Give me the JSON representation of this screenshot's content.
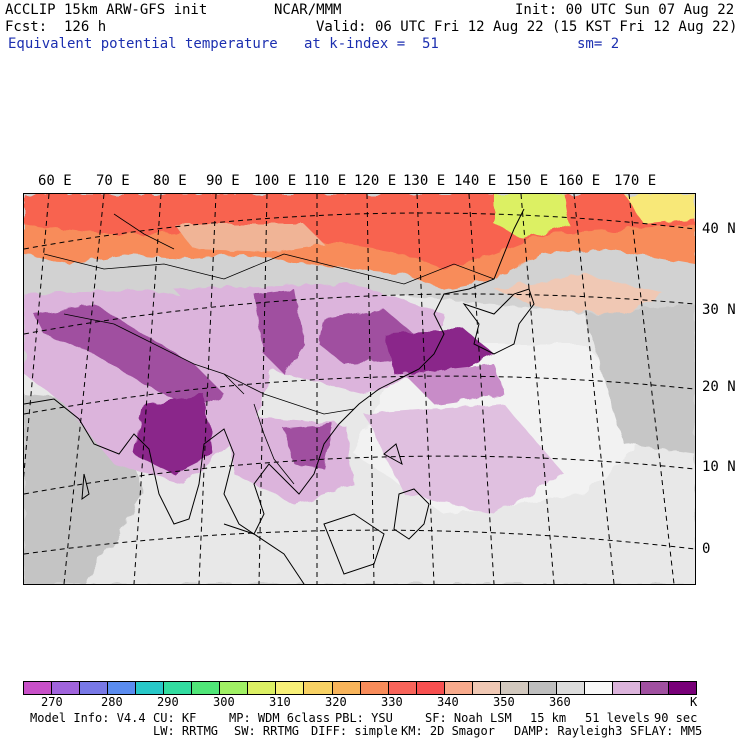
{
  "header": {
    "line1_left": "ACCLIP 15km ARW-GFS init",
    "line1_center": "NCAR/MMM",
    "line1_right": "Init: 00 UTC Sun 07 Aug 22",
    "line2_left": "Fcst:  126 h",
    "line2_right": "Valid: 06 UTC Fri 12 Aug 22 (15 KST Fri 12 Aug 22)",
    "line3_field": "Equivalent potential temperature",
    "line3_level": "at k-index =  51",
    "line3_smooth": "sm= 2"
  },
  "map": {
    "lon_labels": [
      "60 E",
      "70 E",
      "80 E",
      "90 E",
      "100 E",
      "110 E",
      "120 E",
      "130 E",
      "140 E",
      "150 E",
      "160 E",
      "170 E"
    ],
    "lat_labels": [
      "40 N",
      "30 N",
      "20 N",
      "10 N",
      "0"
    ]
  },
  "colorbar": {
    "colors": [
      "#c850c8",
      "#a064dc",
      "#7878e6",
      "#5a8cf0",
      "#28c8c8",
      "#32dca0",
      "#50e678",
      "#a0f064",
      "#dcf064",
      "#f8f078",
      "#f8d264",
      "#f8b45a",
      "#f88c5a",
      "#f8645a",
      "#f85050",
      "#f8aa8c",
      "#f0c8b4",
      "#d2c8be",
      "#bebebe",
      "#dcdcdc",
      "#f8f8f8",
      "#dcb4dc",
      "#a050a0",
      "#780078"
    ],
    "labels": [
      "270",
      "280",
      "290",
      "300",
      "310",
      "320",
      "330",
      "340",
      "350",
      "360"
    ],
    "unit": "K"
  },
  "footer": {
    "line1": [
      "Model Info: V4.4",
      "CU: KF",
      "MP: WDM 6class",
      "PBL: YSU",
      "SF: Noah LSM",
      "15 km",
      "51 levels",
      "90 sec"
    ],
    "line2": [
      "LW: RRTMG",
      "SW: RRTMG",
      "DIFF: simple",
      "KM: 2D Smagor",
      "DAMP: Rayleigh3",
      "SFLAY: MM5"
    ]
  }
}
